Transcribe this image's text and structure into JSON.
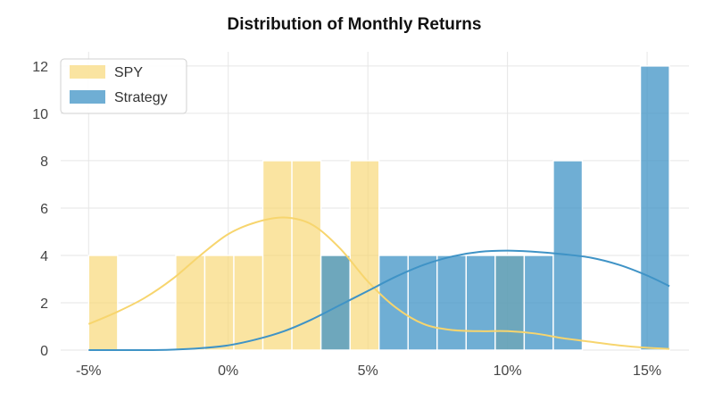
{
  "chart_data": {
    "type": "histogram",
    "title": "Distribution of Monthly Returns",
    "xlabel": "",
    "ylabel": "",
    "xlim": [
      -6,
      16.5
    ],
    "ylim": [
      0,
      12.6
    ],
    "x_ticks": [
      -5,
      0,
      5,
      10,
      15
    ],
    "x_tick_labels": [
      "-5%",
      "0%",
      "5%",
      "10%",
      "15%"
    ],
    "y_ticks": [
      0,
      2,
      4,
      6,
      8,
      10,
      12
    ],
    "y_tick_labels": [
      "0",
      "2",
      "4",
      "6",
      "8",
      "10",
      "12"
    ],
    "grid": true,
    "legend_position": "top-left",
    "series": [
      {
        "name": "SPY",
        "color": "#f7d56e",
        "bin_width": 1.04,
        "bins": [
          {
            "x0": -5.0,
            "count": 4
          },
          {
            "x0": -1.88,
            "count": 4
          },
          {
            "x0": -0.84,
            "count": 4
          },
          {
            "x0": 0.2,
            "count": 4
          },
          {
            "x0": 1.24,
            "count": 8
          },
          {
            "x0": 2.28,
            "count": 8
          },
          {
            "x0": 3.32,
            "count": 4
          },
          {
            "x0": 4.36,
            "count": 8
          },
          {
            "x0": 9.56,
            "count": 4
          }
        ],
        "kde": [
          [
            -5.0,
            1.1
          ],
          [
            -4,
            1.6
          ],
          [
            -3,
            2.2
          ],
          [
            -2,
            3.0
          ],
          [
            -1,
            4.0
          ],
          [
            0,
            4.9
          ],
          [
            1,
            5.4
          ],
          [
            2,
            5.6
          ],
          [
            3,
            5.3
          ],
          [
            4,
            4.3
          ],
          [
            5,
            2.9
          ],
          [
            6,
            1.8
          ],
          [
            7,
            1.1
          ],
          [
            8,
            0.85
          ],
          [
            9,
            0.8
          ],
          [
            10,
            0.8
          ],
          [
            11,
            0.7
          ],
          [
            12,
            0.5
          ],
          [
            13,
            0.35
          ],
          [
            14,
            0.2
          ],
          [
            15,
            0.1
          ],
          [
            15.8,
            0.05
          ]
        ]
      },
      {
        "name": "Strategy",
        "color": "#3f93c6",
        "bin_width": 1.04,
        "bins": [
          {
            "x0": 3.32,
            "count": 4
          },
          {
            "x0": 5.4,
            "count": 4
          },
          {
            "x0": 6.44,
            "count": 4
          },
          {
            "x0": 7.48,
            "count": 4
          },
          {
            "x0": 8.52,
            "count": 4
          },
          {
            "x0": 9.56,
            "count": 4
          },
          {
            "x0": 10.6,
            "count": 4
          },
          {
            "x0": 11.64,
            "count": 8
          },
          {
            "x0": 14.76,
            "count": 12
          }
        ],
        "kde": [
          [
            -5.0,
            0.0
          ],
          [
            -3,
            0.0
          ],
          [
            -2,
            0.02
          ],
          [
            -1,
            0.08
          ],
          [
            0,
            0.2
          ],
          [
            1,
            0.45
          ],
          [
            2,
            0.8
          ],
          [
            3,
            1.3
          ],
          [
            4,
            1.9
          ],
          [
            5,
            2.5
          ],
          [
            6,
            3.1
          ],
          [
            7,
            3.6
          ],
          [
            8,
            3.95
          ],
          [
            9,
            4.15
          ],
          [
            10,
            4.2
          ],
          [
            11,
            4.15
          ],
          [
            12,
            4.05
          ],
          [
            13,
            3.9
          ],
          [
            14,
            3.6
          ],
          [
            15,
            3.15
          ],
          [
            15.8,
            2.7
          ]
        ]
      }
    ]
  }
}
